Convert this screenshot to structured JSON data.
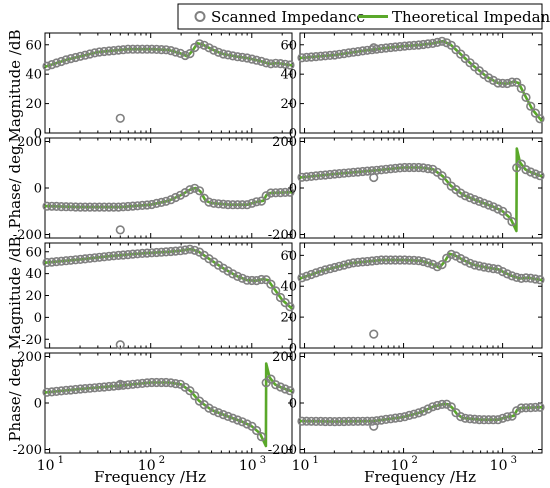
{
  "legend": {
    "scanned_label": "Scanned Impedance",
    "theory_label": "Theoretical Impedance"
  },
  "colors": {
    "scanned": "#808080",
    "theory": "#5aa82a",
    "axis": "#000000"
  },
  "axes": {
    "xlabel": "Frequency /Hz",
    "ylabel_mag": "Magnitude /dB",
    "ylabel_phase": "Phase/ deg",
    "x_tick_labels": [
      "10",
      "10",
      "10"
    ],
    "x_tick_exponents": [
      "1",
      "2",
      "3"
    ]
  },
  "chart_data": [
    {
      "type": "line",
      "quantity": "magnitude",
      "panel": "top-left",
      "xscale": "log",
      "xlim": [
        9,
        2500
      ],
      "ylim": [
        0,
        68
      ],
      "yticks": [
        "0",
        "20",
        "40",
        "60"
      ],
      "theory": [
        [
          9,
          45
        ],
        [
          15,
          50
        ],
        [
          30,
          55
        ],
        [
          60,
          57
        ],
        [
          100,
          57
        ],
        [
          150,
          56.5
        ],
        [
          200,
          54
        ],
        [
          230,
          52
        ],
        [
          260,
          56
        ],
        [
          290,
          61
        ],
        [
          330,
          60
        ],
        [
          400,
          57
        ],
        [
          500,
          54
        ],
        [
          700,
          52
        ],
        [
          900,
          51
        ],
        [
          1200,
          49
        ],
        [
          1500,
          47
        ],
        [
          1800,
          47.5
        ],
        [
          2500,
          46
        ]
      ],
      "scanned_outliers": [
        [
          50,
          10
        ]
      ]
    },
    {
      "type": "line",
      "quantity": "magnitude",
      "panel": "top-right",
      "xscale": "log",
      "xlim": [
        9,
        2500
      ],
      "ylim": [
        0,
        68
      ],
      "yticks": [
        "0",
        "20",
        "40",
        "60"
      ],
      "theory": [
        [
          9,
          51
        ],
        [
          20,
          53
        ],
        [
          40,
          56
        ],
        [
          70,
          58
        ],
        [
          100,
          59
        ],
        [
          150,
          60
        ],
        [
          200,
          61
        ],
        [
          250,
          62.5
        ],
        [
          300,
          60
        ],
        [
          400,
          52
        ],
        [
          500,
          46
        ],
        [
          700,
          38
        ],
        [
          900,
          34
        ],
        [
          1100,
          33.5
        ],
        [
          1300,
          35
        ],
        [
          1450,
          34
        ],
        [
          1700,
          25
        ],
        [
          2000,
          16
        ],
        [
          2500,
          8
        ]
      ],
      "scanned_outliers": [
        [
          50,
          58
        ]
      ]
    },
    {
      "type": "line",
      "quantity": "phase",
      "panel": "upper-mid-left",
      "xscale": "log",
      "xlim": [
        9,
        2500
      ],
      "ylim": [
        -215,
        215
      ],
      "yticks": [
        "-200",
        "0",
        "200"
      ],
      "theory": [
        [
          9,
          -78
        ],
        [
          20,
          -82
        ],
        [
          50,
          -82
        ],
        [
          100,
          -72
        ],
        [
          150,
          -55
        ],
        [
          200,
          -30
        ],
        [
          250,
          -5
        ],
        [
          280,
          0
        ],
        [
          310,
          -15
        ],
        [
          350,
          -55
        ],
        [
          400,
          -65
        ],
        [
          600,
          -72
        ],
        [
          900,
          -72
        ],
        [
          1100,
          -60
        ],
        [
          1300,
          -55
        ],
        [
          1400,
          -30
        ],
        [
          1500,
          -22
        ],
        [
          1800,
          -20
        ],
        [
          2500,
          -18
        ]
      ],
      "scanned_outliers": [
        [
          50,
          -180
        ]
      ]
    },
    {
      "type": "line",
      "quantity": "phase",
      "panel": "upper-mid-right",
      "xscale": "log",
      "xlim": [
        9,
        2500
      ],
      "ylim": [
        -215,
        215
      ],
      "yticks": [
        "-200",
        "0",
        "200"
      ],
      "theory": [
        [
          9,
          45
        ],
        [
          20,
          60
        ],
        [
          50,
          75
        ],
        [
          100,
          88
        ],
        [
          150,
          88
        ],
        [
          200,
          80
        ],
        [
          250,
          50
        ],
        [
          300,
          10
        ],
        [
          400,
          -30
        ],
        [
          600,
          -60
        ],
        [
          800,
          -80
        ],
        [
          1000,
          -100
        ],
        [
          1200,
          -130
        ],
        [
          1380,
          -185
        ],
        [
          1390,
          170
        ],
        [
          1500,
          110
        ],
        [
          1700,
          80
        ],
        [
          2000,
          65
        ],
        [
          2500,
          50
        ]
      ],
      "scanned_outliers": [
        [
          50,
          45
        ]
      ]
    },
    {
      "type": "line",
      "quantity": "magnitude",
      "panel": "lower-mid-left",
      "xscale": "log",
      "xlim": [
        9,
        2500
      ],
      "ylim": [
        -28,
        68
      ],
      "yticks": [
        "-20",
        "0",
        "20",
        "40",
        "60"
      ],
      "theory": [
        [
          9,
          50
        ],
        [
          20,
          53
        ],
        [
          40,
          56
        ],
        [
          70,
          58
        ],
        [
          100,
          59
        ],
        [
          150,
          60
        ],
        [
          200,
          61
        ],
        [
          250,
          62.5
        ],
        [
          300,
          60
        ],
        [
          400,
          52
        ],
        [
          500,
          46
        ],
        [
          700,
          38
        ],
        [
          900,
          34
        ],
        [
          1100,
          33.5
        ],
        [
          1300,
          35
        ],
        [
          1450,
          34
        ],
        [
          1700,
          25
        ],
        [
          2000,
          16
        ],
        [
          2500,
          8
        ]
      ],
      "scanned_outliers": [
        [
          50,
          -25
        ]
      ]
    },
    {
      "type": "line",
      "quantity": "magnitude",
      "panel": "lower-mid-right",
      "xscale": "log",
      "xlim": [
        9,
        2500
      ],
      "ylim": [
        0,
        68
      ],
      "yticks": [
        "0",
        "20",
        "40",
        "60"
      ],
      "theory": [
        [
          9,
          45
        ],
        [
          15,
          50
        ],
        [
          30,
          55
        ],
        [
          60,
          57
        ],
        [
          100,
          57
        ],
        [
          150,
          56.5
        ],
        [
          200,
          54
        ],
        [
          230,
          52
        ],
        [
          260,
          56
        ],
        [
          290,
          61
        ],
        [
          330,
          60
        ],
        [
          400,
          57
        ],
        [
          500,
          54
        ],
        [
          700,
          52
        ],
        [
          900,
          51
        ],
        [
          1200,
          47
        ],
        [
          1500,
          45
        ],
        [
          1800,
          45.5
        ],
        [
          2500,
          44
        ]
      ],
      "scanned_outliers": [
        [
          50,
          9
        ]
      ]
    },
    {
      "type": "line",
      "quantity": "phase",
      "panel": "bottom-left",
      "xscale": "log",
      "xlim": [
        9,
        2500
      ],
      "ylim": [
        -215,
        215
      ],
      "yticks": [
        "-200",
        "0",
        "200"
      ],
      "theory": [
        [
          9,
          45
        ],
        [
          20,
          60
        ],
        [
          50,
          75
        ],
        [
          100,
          88
        ],
        [
          150,
          88
        ],
        [
          200,
          80
        ],
        [
          250,
          50
        ],
        [
          300,
          10
        ],
        [
          400,
          -30
        ],
        [
          600,
          -60
        ],
        [
          800,
          -80
        ],
        [
          1000,
          -100
        ],
        [
          1200,
          -130
        ],
        [
          1380,
          -185
        ],
        [
          1390,
          170
        ],
        [
          1500,
          110
        ],
        [
          1700,
          80
        ],
        [
          2000,
          65
        ],
        [
          2500,
          50
        ]
      ],
      "scanned_outliers": [
        [
          50,
          80
        ]
      ]
    },
    {
      "type": "line",
      "quantity": "phase",
      "panel": "bottom-right",
      "xscale": "log",
      "xlim": [
        9,
        2500
      ],
      "ylim": [
        -215,
        215
      ],
      "yticks": [
        "-200",
        "0",
        "200"
      ],
      "theory": [
        [
          9,
          -78
        ],
        [
          20,
          -80
        ],
        [
          50,
          -78
        ],
        [
          100,
          -60
        ],
        [
          150,
          -40
        ],
        [
          200,
          -15
        ],
        [
          250,
          -5
        ],
        [
          280,
          -5
        ],
        [
          310,
          -20
        ],
        [
          350,
          -50
        ],
        [
          400,
          -65
        ],
        [
          600,
          -72
        ],
        [
          900,
          -72
        ],
        [
          1100,
          -60
        ],
        [
          1300,
          -55
        ],
        [
          1400,
          -30
        ],
        [
          1500,
          -22
        ],
        [
          1800,
          -20
        ],
        [
          2500,
          -18
        ]
      ],
      "scanned_outliers": [
        [
          50,
          -100
        ]
      ]
    }
  ]
}
